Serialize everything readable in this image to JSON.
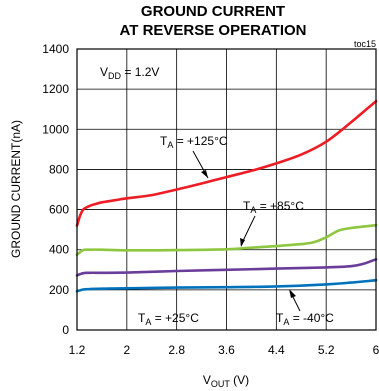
{
  "chart_data": {
    "type": "line",
    "title_line1": "GROUND CURRENT",
    "title_line2": "AT REVERSE OPERATION",
    "tag": "toc15",
    "ylabel": "GROUND CURRENT(nA)",
    "xlabel_main": "V",
    "xlabel_sub": "OUT",
    "xlabel_unit": " (V)",
    "xlim": [
      1.2,
      6.0
    ],
    "ylim": [
      0,
      1400
    ],
    "xticks": [
      1.2,
      2,
      2.8,
      3.6,
      4.4,
      5.2,
      6
    ],
    "xtick_labels": [
      "1.2",
      "2",
      "2.8",
      "3.6",
      "4.4",
      "5.2",
      "6"
    ],
    "yticks": [
      0,
      200,
      400,
      600,
      800,
      1000,
      1200,
      1400
    ],
    "ytick_labels": [
      "0",
      "200",
      "400",
      "600",
      "800",
      "1000",
      "1200",
      "1400"
    ],
    "grid": true,
    "condition": {
      "main": "V",
      "sub": "DD",
      "rest": " = 1.2V"
    },
    "series": [
      {
        "name": "+125°C",
        "color": "#ee1c24",
        "x": [
          1.2,
          1.25,
          1.3,
          1.4,
          1.5,
          1.6,
          1.8,
          2.0,
          2.4,
          2.8,
          3.2,
          3.6,
          4.0,
          4.4,
          4.8,
          5.2,
          5.6,
          6.0
        ],
        "y": [
          520,
          570,
          600,
          618,
          628,
          636,
          646,
          656,
          672,
          700,
          730,
          762,
          793,
          830,
          874,
          938,
          1035,
          1140
        ]
      },
      {
        "name": "+85°C",
        "color": "#8dc63f",
        "x": [
          1.2,
          1.3,
          1.4,
          1.6,
          2.0,
          2.8,
          3.6,
          4.0,
          4.4,
          4.8,
          5.0,
          5.2,
          5.4,
          5.6,
          6.0
        ],
        "y": [
          375,
          398,
          400,
          400,
          397,
          398,
          402,
          410,
          418,
          428,
          437,
          462,
          495,
          508,
          522
        ]
      },
      {
        "name": "",
        "color": "#6a3d9a",
        "x": [
          1.2,
          1.3,
          1.4,
          1.6,
          2.0,
          2.8,
          3.6,
          4.4,
          5.2,
          5.6,
          5.8,
          6.0
        ],
        "y": [
          272,
          283,
          285,
          285,
          286,
          294,
          300,
          306,
          312,
          318,
          330,
          352
        ]
      },
      {
        "name": "",
        "color": "#0072bc",
        "x": [
          1.2,
          1.3,
          1.4,
          1.6,
          2.0,
          2.8,
          3.6,
          4.4,
          5.2,
          5.6,
          6.0
        ],
        "y": [
          193,
          202,
          204,
          206,
          208,
          211,
          213,
          217,
          227,
          236,
          248
        ]
      }
    ],
    "annotations": [
      {
        "main": "T",
        "sub": "A",
        "rest": " = +125°C"
      },
      {
        "main": "T",
        "sub": "A",
        "rest": " = +85°C"
      },
      {
        "main": "T",
        "sub": "A",
        "rest": " = +25°C"
      },
      {
        "main": "T",
        "sub": "A",
        "rest": " = -40°C"
      }
    ]
  }
}
